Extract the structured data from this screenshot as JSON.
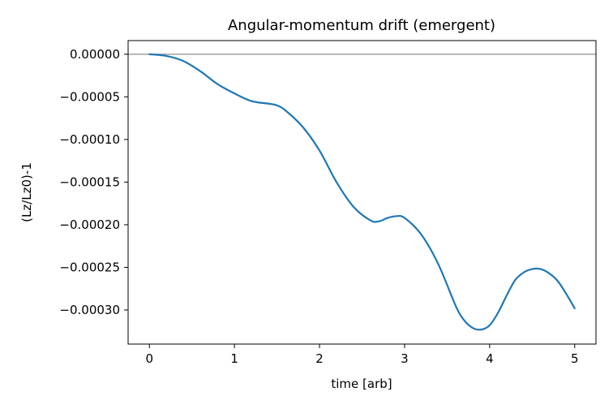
{
  "chart_data": {
    "type": "line",
    "title": "Angular-momentum drift (emergent)",
    "xlabel": "time [arb]",
    "ylabel": "(Lz/Lz0)-1",
    "xlim": [
      -0.25,
      5.25
    ],
    "ylim": [
      -0.00034,
      1.6e-05
    ],
    "xticks": [
      0,
      1,
      2,
      3,
      4,
      5
    ],
    "xtick_labels": [
      "0",
      "1",
      "2",
      "3",
      "4",
      "5"
    ],
    "yticks": [
      0,
      -5e-05,
      -0.0001,
      -0.00015,
      -0.0002,
      -0.00025,
      -0.0003
    ],
    "ytick_labels": [
      "0.00000",
      "−0.00005",
      "−0.00010",
      "−0.00015",
      "−0.00020",
      "−0.00025",
      "−0.00030"
    ],
    "grid": false,
    "reference_line": {
      "y": 0,
      "color": "#999999"
    },
    "series": [
      {
        "color": "#1f77b4",
        "x": [
          0,
          0.2,
          0.4,
          0.6,
          0.8,
          1.0,
          1.2,
          1.4,
          1.5,
          1.6,
          1.8,
          2.0,
          2.2,
          2.4,
          2.6,
          2.7,
          2.8,
          2.9,
          3.0,
          3.2,
          3.4,
          3.6,
          3.7,
          3.8,
          3.9,
          4.0,
          4.1,
          4.2,
          4.3,
          4.4,
          4.5,
          4.6,
          4.7,
          4.8,
          4.9,
          5.0
        ],
        "y": [
          0,
          -2e-06,
          -8e-06,
          -2e-05,
          -3.5e-05,
          -4.6e-05,
          -5.5e-05,
          -5.8e-05,
          -6e-05,
          -6.6e-05,
          -8.5e-05,
          -0.000113,
          -0.00015,
          -0.000179,
          -0.000195,
          -0.000196,
          -0.000192,
          -0.00019,
          -0.000192,
          -0.000212,
          -0.000247,
          -0.000295,
          -0.000312,
          -0.000321,
          -0.000323,
          -0.000318,
          -0.000303,
          -0.000283,
          -0.000265,
          -0.000256,
          -0.000252,
          -0.000252,
          -0.000257,
          -0.000266,
          -0.000281,
          -0.000298
        ]
      }
    ]
  }
}
